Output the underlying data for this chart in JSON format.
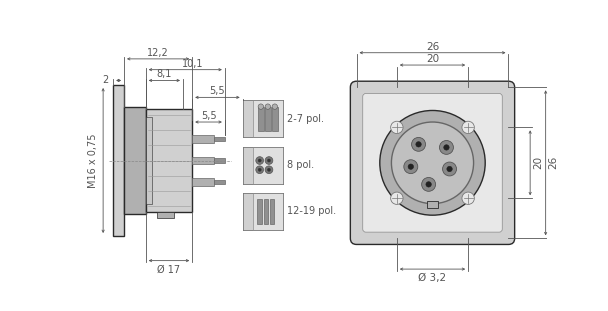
{
  "bg_color": "#ffffff",
  "line_color": "#2a2a2a",
  "dim_color": "#555555",
  "gray1": "#d0d0d0",
  "gray2": "#b0b0b0",
  "gray3": "#909090",
  "gray4": "#e8e8e8",
  "inset_labels": [
    "2-7 pol.",
    "8 pol.",
    "12-19 pol."
  ]
}
